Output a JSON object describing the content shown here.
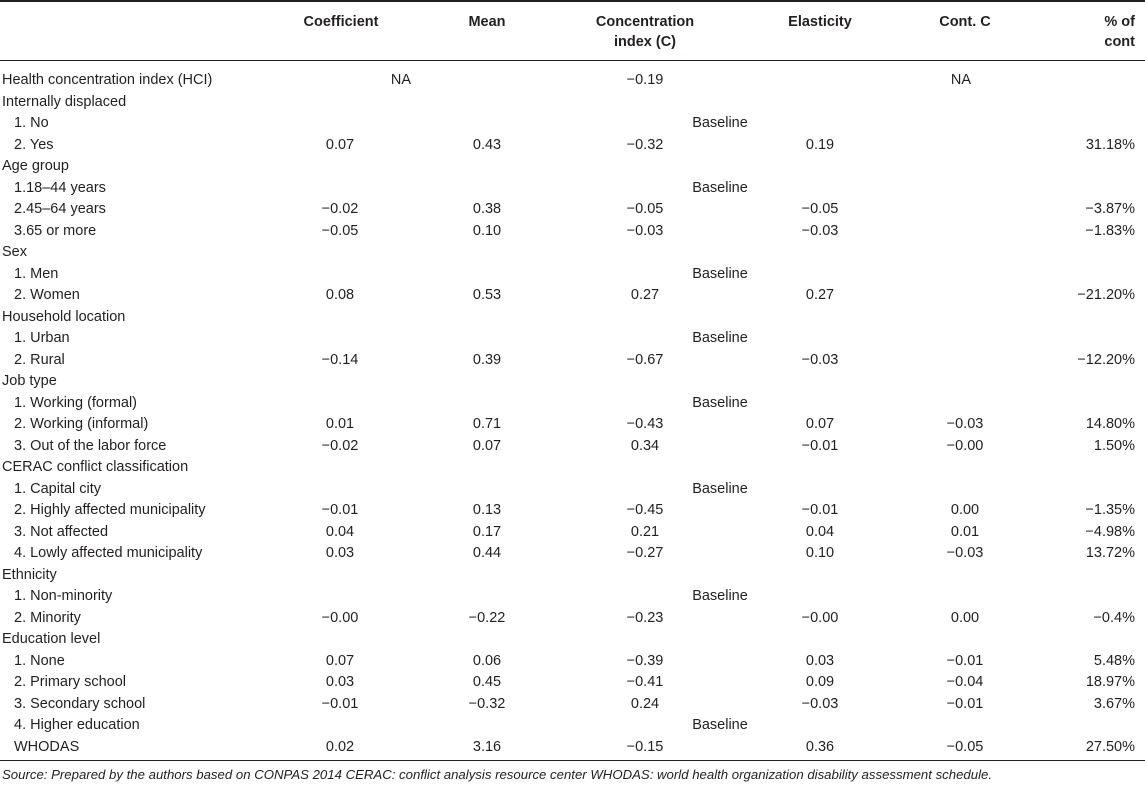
{
  "headers": {
    "coefficient": "Coefficient",
    "mean": "Mean",
    "concentration_line1": "Concentration",
    "concentration_line2": "index (C)",
    "elasticity": "Elasticity",
    "cont_c": "Cont. C",
    "pct_line1": "% of",
    "pct_line2": "cont"
  },
  "rows": [
    {
      "type": "na",
      "label": "Health concentration index (HCI)",
      "na1": "NA",
      "ci": "−0.19",
      "na2": "NA"
    },
    {
      "type": "group",
      "label": "Internally displaced"
    },
    {
      "type": "baseline",
      "label": "1. No",
      "baseline": "Baseline"
    },
    {
      "type": "data",
      "label": "2. Yes",
      "coef": "0.07",
      "mean": "0.43",
      "ci": "−0.32",
      "el": "0.19",
      "cc": "",
      "pct": "31.18%"
    },
    {
      "type": "group",
      "label": "Age group"
    },
    {
      "type": "baseline",
      "label": "1.18–44 years",
      "baseline": "Baseline"
    },
    {
      "type": "data",
      "label": "2.45–64 years",
      "coef": "−0.02",
      "mean": "0.38",
      "ci": "−0.05",
      "el": "−0.05",
      "cc": "",
      "pct": "−3.87%"
    },
    {
      "type": "data",
      "label": "3.65 or more",
      "coef": "−0.05",
      "mean": "0.10",
      "ci": "−0.03",
      "el": "−0.03",
      "cc": "",
      "pct": "−1.83%"
    },
    {
      "type": "group",
      "label": "Sex"
    },
    {
      "type": "baseline",
      "label": "1. Men",
      "baseline": "Baseline"
    },
    {
      "type": "data",
      "label": "2. Women",
      "coef": "0.08",
      "mean": "0.53",
      "ci": "0.27",
      "el": "0.27",
      "cc": "",
      "pct": "−21.20%"
    },
    {
      "type": "group",
      "label": "Household location"
    },
    {
      "type": "baseline",
      "label": "1. Urban",
      "baseline": "Baseline"
    },
    {
      "type": "data",
      "label": "2. Rural",
      "coef": "−0.14",
      "mean": "0.39",
      "ci": "−0.67",
      "el": "−0.03",
      "cc": "",
      "pct": "−12.20%"
    },
    {
      "type": "group",
      "label": "Job type"
    },
    {
      "type": "baseline",
      "label": "1. Working (formal)",
      "baseline": "Baseline"
    },
    {
      "type": "data",
      "label": "2. Working (informal)",
      "coef": "0.01",
      "mean": "0.71",
      "ci": "−0.43",
      "el": "0.07",
      "cc": "−0.03",
      "pct": "14.80%"
    },
    {
      "type": "data",
      "label": "3. Out of the labor force",
      "coef": "−0.02",
      "mean": "0.07",
      "ci": "0.34",
      "el": "−0.01",
      "cc": "−0.00",
      "pct": "1.50%"
    },
    {
      "type": "group",
      "label": "CERAC conflict classification"
    },
    {
      "type": "baseline",
      "label": "1. Capital city",
      "baseline": "Baseline"
    },
    {
      "type": "data",
      "label": "2. Highly affected municipality",
      "coef": "−0.01",
      "mean": "0.13",
      "ci": "−0.45",
      "el": "−0.01",
      "cc": "0.00",
      "pct": "−1.35%"
    },
    {
      "type": "data",
      "label": "3. Not affected",
      "coef": "0.04",
      "mean": "0.17",
      "ci": "0.21",
      "el": "0.04",
      "cc": "0.01",
      "pct": "−4.98%"
    },
    {
      "type": "data",
      "label": "4. Lowly affected municipality",
      "coef": "0.03",
      "mean": "0.44",
      "ci": "−0.27",
      "el": "0.10",
      "cc": "−0.03",
      "pct": "13.72%"
    },
    {
      "type": "group",
      "label": "Ethnicity"
    },
    {
      "type": "baseline",
      "label": "1. Non-minority",
      "baseline": "Baseline"
    },
    {
      "type": "data",
      "label": "2. Minority",
      "coef": "−0.00",
      "mean": "−0.22",
      "ci": "−0.23",
      "el": "−0.00",
      "cc": "0.00",
      "pct": "−0.4%"
    },
    {
      "type": "group",
      "label": "Education level"
    },
    {
      "type": "data",
      "label": "1. None",
      "coef": "0.07",
      "mean": "0.06",
      "ci": "−0.39",
      "el": "0.03",
      "cc": "−0.01",
      "pct": "5.48%"
    },
    {
      "type": "data",
      "label": "2. Primary school",
      "coef": "0.03",
      "mean": "0.45",
      "ci": "−0.41",
      "el": "0.09",
      "cc": "−0.04",
      "pct": "18.97%"
    },
    {
      "type": "data",
      "label": "3. Secondary school",
      "coef": "−0.01",
      "mean": "−0.32",
      "ci": "0.24",
      "el": "−0.03",
      "cc": "−0.01",
      "pct": "3.67%"
    },
    {
      "type": "baseline",
      "label": "4. Higher education",
      "baseline": "Baseline"
    },
    {
      "type": "data",
      "label": "WHODAS",
      "coef": "0.02",
      "mean": "3.16",
      "ci": "−0.15",
      "el": "0.36",
      "cc": "−0.05",
      "pct": "27.50%"
    }
  ],
  "source": "Source: Prepared by the authors based on CONPAS 2014 CERAC: conflict analysis resource center WHODAS: world health organization disability assessment schedule."
}
